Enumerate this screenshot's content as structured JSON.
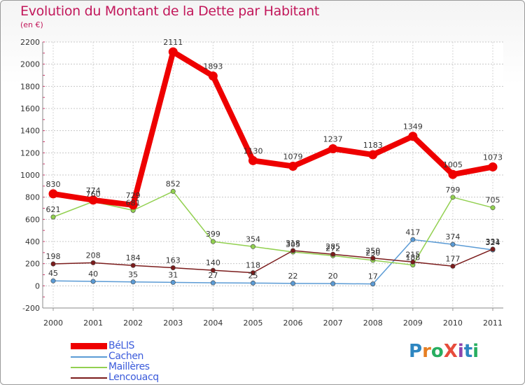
{
  "header": {
    "title": "Evolution du Montant de la Dette par Habitant",
    "unit": "(en €)"
  },
  "logo": {
    "text": "ProXiti",
    "letters": [
      "P",
      "r",
      "o",
      "X",
      "i",
      "t",
      "i"
    ],
    "colors": [
      "#2e86c1",
      "#e67e22",
      "#27ae60",
      "#e74c3c",
      "#8e44ad",
      "#2e86c1",
      "#27ae60"
    ]
  },
  "chart_data": {
    "type": "line",
    "categories": [
      "2000",
      "2001",
      "2002",
      "2003",
      "2004",
      "2005",
      "2006",
      "2007",
      "2008",
      "2009",
      "2010",
      "2011"
    ],
    "ylim": [
      -200,
      2200
    ],
    "yticks": [
      -200,
      0,
      200,
      400,
      600,
      800,
      1000,
      1200,
      1400,
      1600,
      1800,
      2000,
      2200
    ],
    "grid": true,
    "legend": "bottom-left",
    "series": [
      {
        "name": "BéLIS",
        "color": "#ee0000",
        "values": [
          830,
          774,
          729,
          2111,
          1893,
          1130,
          1079,
          1237,
          1183,
          1349,
          1005,
          1073
        ]
      },
      {
        "name": "Cachen",
        "color": "#5b9bd5",
        "values": [
          45,
          40,
          35,
          31,
          27,
          25,
          22,
          20,
          17,
          417,
          374,
          324
        ]
      },
      {
        "name": "Maillères",
        "color": "#92d050",
        "values": [
          621,
          760,
          681,
          852,
          399,
          354,
          305,
          272,
          230,
          188,
          799,
          705
        ]
      },
      {
        "name": "Lencouacq",
        "color": "#7b1c1c",
        "values": [
          198,
          208,
          184,
          163,
          140,
          118,
          318,
          285,
          250,
          215,
          177,
          331
        ]
      }
    ]
  }
}
